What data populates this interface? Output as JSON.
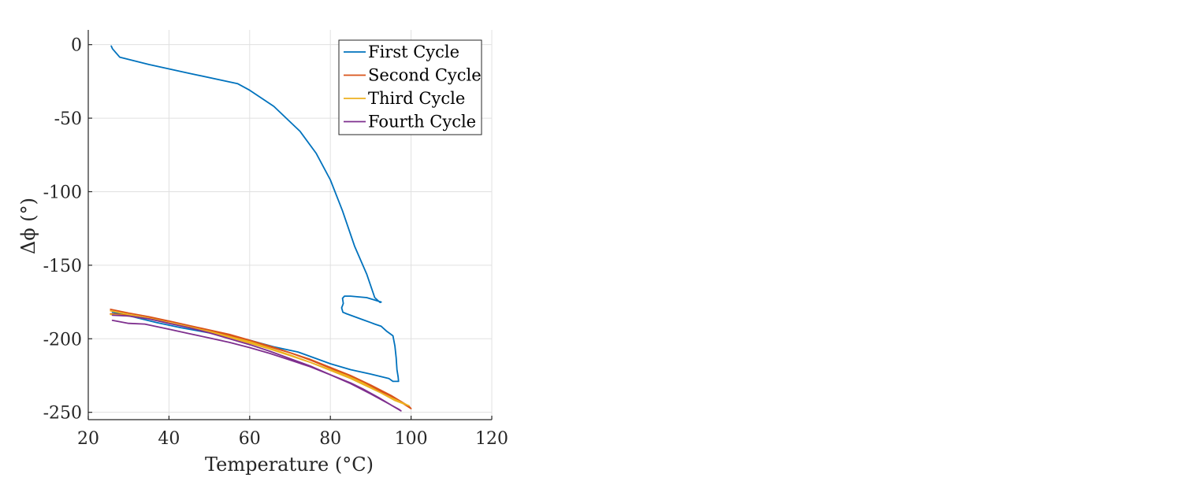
{
  "chart_data": {
    "type": "line",
    "title": "",
    "xlabel": "Temperature (°C)",
    "ylabel": "Δϕ  (°)",
    "xlim": [
      20,
      120
    ],
    "ylim": [
      -255,
      10
    ],
    "xticks": [
      20,
      40,
      60,
      80,
      100,
      120
    ],
    "xtick_labels": [
      "20",
      "40",
      "60",
      "80",
      "100",
      "120"
    ],
    "yticks": [
      0,
      -50,
      -100,
      -150,
      -200,
      -250
    ],
    "ytick_labels": [
      "0",
      "-50",
      "-100",
      "-150",
      "-200",
      "-250"
    ],
    "grid": true,
    "legend_position": "top-right",
    "series": [
      {
        "name": "First Cycle",
        "color": "#0072BD",
        "x": [
          25.7,
          26.0,
          27.8,
          35.0,
          45.0,
          57.0,
          60.0,
          66.0,
          72.5,
          76.5,
          80.0,
          83.0,
          86.0,
          89.0,
          91.0,
          92.3,
          92.6,
          89.0,
          85.0,
          83.5,
          83.0,
          83.2,
          82.8,
          83.1,
          84.0,
          88.0,
          90.0,
          91.0,
          92.6,
          94.0,
          95.5,
          96.0,
          96.3,
          96.5,
          96.8,
          96.9,
          95.5,
          94.5,
          90.0,
          85.0,
          80.0,
          77.0,
          72.0,
          66.0,
          60.0,
          55.0,
          49.0,
          43.0,
          37.0,
          31.0,
          28.0,
          26.0
        ],
        "y": [
          -1.0,
          -2.8,
          -8.5,
          -13.5,
          -19.5,
          -26.5,
          -31.0,
          -42.0,
          -59.0,
          -74.0,
          -92.0,
          -113.0,
          -137.0,
          -156.0,
          -172.0,
          -175.3,
          -175.0,
          -172.0,
          -171.0,
          -171.0,
          -172.5,
          -176.0,
          -179.0,
          -182.0,
          -183.0,
          -187.0,
          -189.0,
          -190.0,
          -191.5,
          -195.0,
          -198.0,
          -205.0,
          -213.0,
          -221.0,
          -226.0,
          -229.0,
          -229.0,
          -227.0,
          -224.0,
          -221.0,
          -217.0,
          -214.0,
          -209.0,
          -205.5,
          -201.0,
          -198.5,
          -195.5,
          -192.5,
          -189.0,
          -185.0,
          -183.0,
          -182.0
        ]
      },
      {
        "name": "Second Cycle",
        "color": "#D95319",
        "x": [
          25.5,
          30.0,
          35.0,
          40.0,
          45.0,
          50.0,
          55.0,
          60.0,
          65.0,
          70.0,
          75.0,
          80.0,
          85.0,
          90.0,
          95.0,
          98.0,
          99.5,
          100.0,
          98.0,
          95.0,
          90.0,
          85.0,
          80.0,
          75.0,
          70.0,
          65.0,
          60.0,
          55.0,
          50.0,
          45.0,
          40.0,
          35.0,
          30.0,
          25.5
        ],
        "y": [
          -180.0,
          -182.5,
          -185.0,
          -188.0,
          -191.0,
          -194.0,
          -197.0,
          -201.0,
          -205.0,
          -209.5,
          -214.0,
          -219.5,
          -225.0,
          -231.5,
          -238.5,
          -243.5,
          -246.0,
          -247.5,
          -244.0,
          -239.0,
          -232.5,
          -226.0,
          -220.0,
          -214.5,
          -209.5,
          -205.5,
          -201.5,
          -198.0,
          -194.5,
          -191.0,
          -188.0,
          -186.0,
          -184.0,
          -183.0
        ]
      },
      {
        "name": "Third Cycle",
        "color": "#EDB120",
        "x": [
          25.5,
          30.0,
          35.0,
          40.0,
          45.0,
          50.0,
          55.0,
          60.0,
          65.0,
          70.0,
          75.0,
          80.0,
          85.0,
          90.0,
          95.0,
          99.0,
          99.5,
          96.0,
          92.0,
          88.0,
          84.0,
          80.0,
          75.0,
          70.0,
          65.0,
          60.0,
          55.0,
          50.0,
          45.0,
          40.0,
          35.0,
          30.0,
          25.5
        ],
        "y": [
          -181.0,
          -183.5,
          -186.0,
          -189.0,
          -192.0,
          -195.0,
          -198.5,
          -202.0,
          -206.5,
          -211.0,
          -216.0,
          -221.5,
          -227.0,
          -233.5,
          -240.0,
          -245.0,
          -245.5,
          -242.0,
          -236.0,
          -230.0,
          -225.0,
          -221.0,
          -216.0,
          -211.5,
          -207.0,
          -203.0,
          -199.0,
          -195.5,
          -192.0,
          -189.0,
          -186.5,
          -184.5,
          -183.5
        ]
      },
      {
        "name": "Fourth Cycle",
        "color": "#7E2F8E",
        "x": [
          26.0,
          30.0,
          34.0,
          40.0,
          45.0,
          50.0,
          55.0,
          60.0,
          65.0,
          70.0,
          75.0,
          80.0,
          85.0,
          90.0,
          94.0,
          97.0,
          97.5,
          95.0,
          92.0,
          88.0,
          85.0,
          80.0,
          75.0,
          70.0,
          65.0,
          60.0,
          55.0,
          50.0,
          45.0,
          40.0,
          35.0,
          30.0,
          26.0
        ],
        "y": [
          -187.5,
          -189.5,
          -190.0,
          -193.5,
          -196.5,
          -199.5,
          -202.5,
          -206.0,
          -210.0,
          -214.5,
          -219.0,
          -224.5,
          -230.5,
          -237.5,
          -243.5,
          -248.0,
          -249.0,
          -245.0,
          -240.0,
          -234.0,
          -230.0,
          -224.5,
          -218.5,
          -213.5,
          -208.5,
          -204.0,
          -200.0,
          -196.0,
          -192.5,
          -189.5,
          -186.5,
          -184.5,
          -184.0
        ]
      }
    ]
  }
}
